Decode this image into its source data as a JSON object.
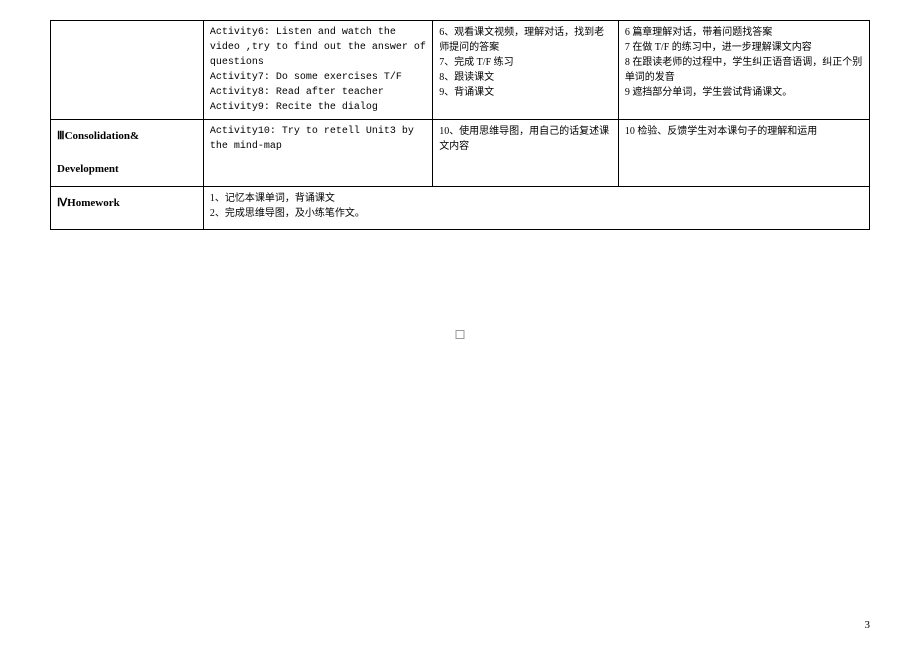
{
  "table": {
    "row1": {
      "col1": "",
      "col2": "Activity6: Listen and watch the video ,try to find out the answer of questions\nActivity7: Do some exercises T/F\nActivity8: Read after teacher\nActivity9: Recite the dialog",
      "col3": "6、观看课文视频，理解对话，找到老师提问的答案\n7、完成 T/F 练习\n8、跟读课文\n9、背诵课文",
      "col4": "6 篇章理解对话，带着问题找答案\n7 在做 T/F 的练习中，进一步理解课文内容\n8 在跟读老师的过程中，学生纠正语音语调，纠正个别单词的发音\n9 遮挡部分单词，学生尝试背诵课文。"
    },
    "row2": {
      "col1": "ⅢConsolidation&\n\nDevelopment",
      "col2": "Activity10: Try to retell Unit3 by the mind-map",
      "col3": "10、使用思维导图，用自己的话复述课文内容",
      "col4": "10 检验、反馈学生对本课句子的理解和运用"
    },
    "row3": {
      "col1": "ⅣHomework",
      "col2": "1、记忆本课单词，背诵课文\n2、完成思维导图，及小练笔作文。"
    }
  },
  "pageNumber": "3"
}
